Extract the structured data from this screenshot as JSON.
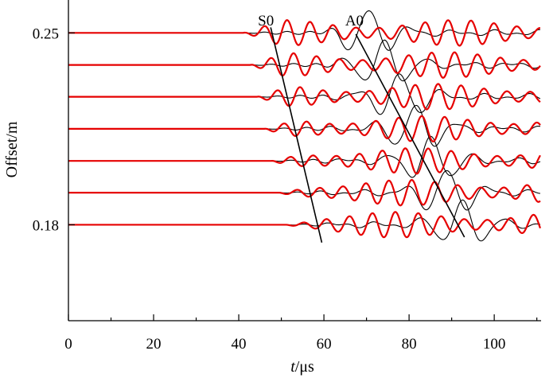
{
  "chart_data": {
    "type": "line",
    "title": "",
    "xlabel_italic": "t",
    "xlabel_rest": "/μs",
    "ylabel": "Offset/m",
    "xlim": [
      0,
      111
    ],
    "ylim": [
      0.145,
      0.262
    ],
    "x_ticks": [
      0,
      20,
      40,
      60,
      80,
      100
    ],
    "y_ticks": [
      {
        "value": 0.25,
        "label": "0.25"
      },
      {
        "value": 0.18,
        "label": "0.18"
      }
    ],
    "grid": false,
    "legend": "none",
    "colors": {
      "black_series": "#000000",
      "red_series": "#e60000",
      "axis": "#000000"
    },
    "trace_offsets": [
      0.25,
      0.2383,
      0.2267,
      0.215,
      0.2033,
      0.1917,
      0.18
    ],
    "annotations": [
      {
        "text": "S0",
        "x": 44.5,
        "y": 0.258
      },
      {
        "text": "A0",
        "x": 65,
        "y": 0.258
      }
    ],
    "guide_lines": [
      {
        "name": "S0",
        "from": {
          "x": 47.5,
          "y": 0.252
        },
        "to": {
          "x": 59.5,
          "y": 0.1735
        }
      },
      {
        "name": "A0",
        "from": {
          "x": 67.5,
          "y": 0.2495
        },
        "to": {
          "x": 93,
          "y": 0.1755
        }
      }
    ],
    "series": [
      {
        "color": "black",
        "description": "A0-dominant response"
      },
      {
        "color": "red",
        "description": "S0-dominant response"
      }
    ]
  }
}
